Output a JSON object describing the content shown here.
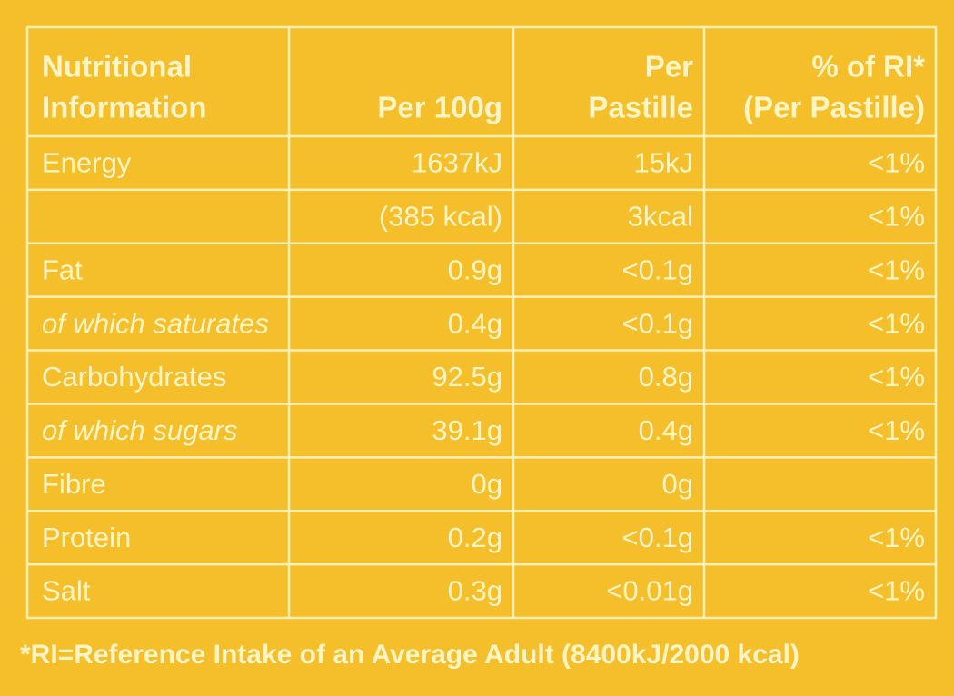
{
  "table": {
    "header": [
      [
        "Nutritional",
        "Information"
      ],
      [
        "Per 100g"
      ],
      [
        "Per",
        "Pastille"
      ],
      [
        "% of RI*",
        "(Per Pastille)"
      ]
    ],
    "rows": [
      {
        "cells": [
          "Energy",
          "1637kJ",
          "15kJ",
          "<1%"
        ],
        "italic": false
      },
      {
        "cells": [
          null,
          "(385 kcal)",
          "3kcal",
          "<1%"
        ],
        "italic": false
      },
      {
        "cells": [
          "Fat",
          "0.9g",
          "<0.1g",
          "<1%"
        ],
        "italic": false
      },
      {
        "cells": [
          "of which saturates",
          "0.4g",
          "<0.1g",
          "<1%"
        ],
        "italic": true
      },
      {
        "cells": [
          "Carbohydrates",
          "92.5g",
          "0.8g",
          "<1%"
        ],
        "italic": false
      },
      {
        "cells": [
          "of which sugars",
          "39.1g",
          "0.4g",
          "<1%"
        ],
        "italic": true
      },
      {
        "cells": [
          "Fibre",
          "0g",
          "0g",
          null
        ],
        "italic": false
      },
      {
        "cells": [
          "Protein",
          "0.2g",
          "<0.1g",
          "<1%"
        ],
        "italic": false
      },
      {
        "cells": [
          "Salt",
          "0.3g",
          "<0.01g",
          "<1%"
        ],
        "italic": false
      }
    ],
    "footnote": "*RI=Reference Intake  of an Average Adult (8400kJ/2000 kcal)"
  }
}
